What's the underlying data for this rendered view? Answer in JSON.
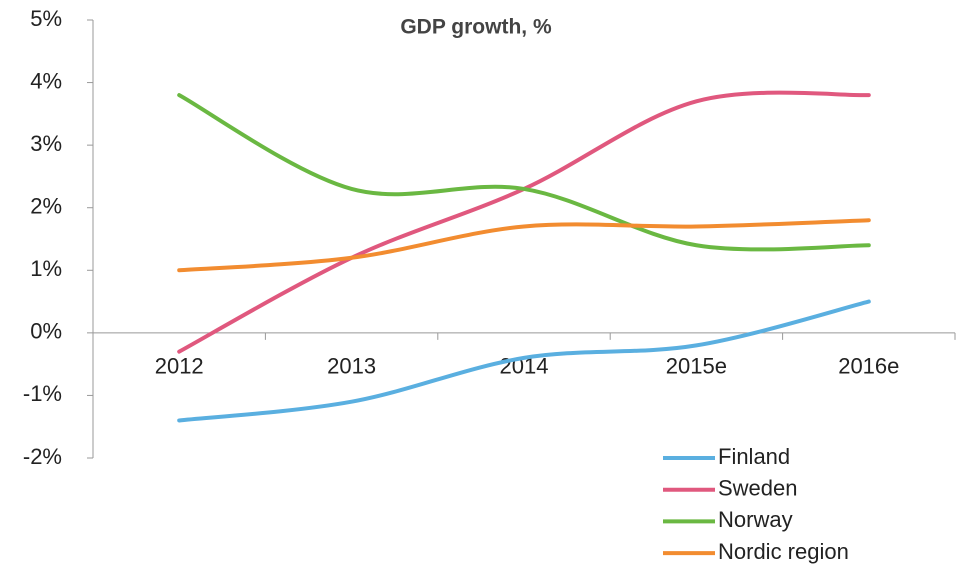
{
  "chart_data": {
    "type": "line",
    "title": "GDP growth, %",
    "categories": [
      "2012",
      "2013",
      "2014",
      "2015e",
      "2016e"
    ],
    "series": [
      {
        "name": "Finland",
        "color": "#5aafe0",
        "values": [
          -1.4,
          -1.1,
          -0.4,
          -0.2,
          0.5
        ]
      },
      {
        "name": "Sweden",
        "color": "#e0587e",
        "values": [
          -0.3,
          1.2,
          2.3,
          3.7,
          3.8
        ]
      },
      {
        "name": "Norway",
        "color": "#6ab842",
        "values": [
          3.8,
          2.3,
          2.3,
          1.4,
          1.4
        ]
      },
      {
        "name": "Nordic region",
        "color": "#f28c30",
        "values": [
          1.0,
          1.2,
          1.7,
          1.7,
          1.8
        ]
      }
    ],
    "ylim": [
      -2,
      5
    ],
    "yticks": [
      {
        "value": -2,
        "label": "-2%"
      },
      {
        "value": -1,
        "label": "-1%"
      },
      {
        "value": 0,
        "label": "0%"
      },
      {
        "value": 1,
        "label": "1%"
      },
      {
        "value": 2,
        "label": "2%"
      },
      {
        "value": 3,
        "label": "3%"
      },
      {
        "value": 4,
        "label": "4%"
      },
      {
        "value": 5,
        "label": "5%"
      }
    ],
    "legend": "bottom-right",
    "smooth": true
  }
}
